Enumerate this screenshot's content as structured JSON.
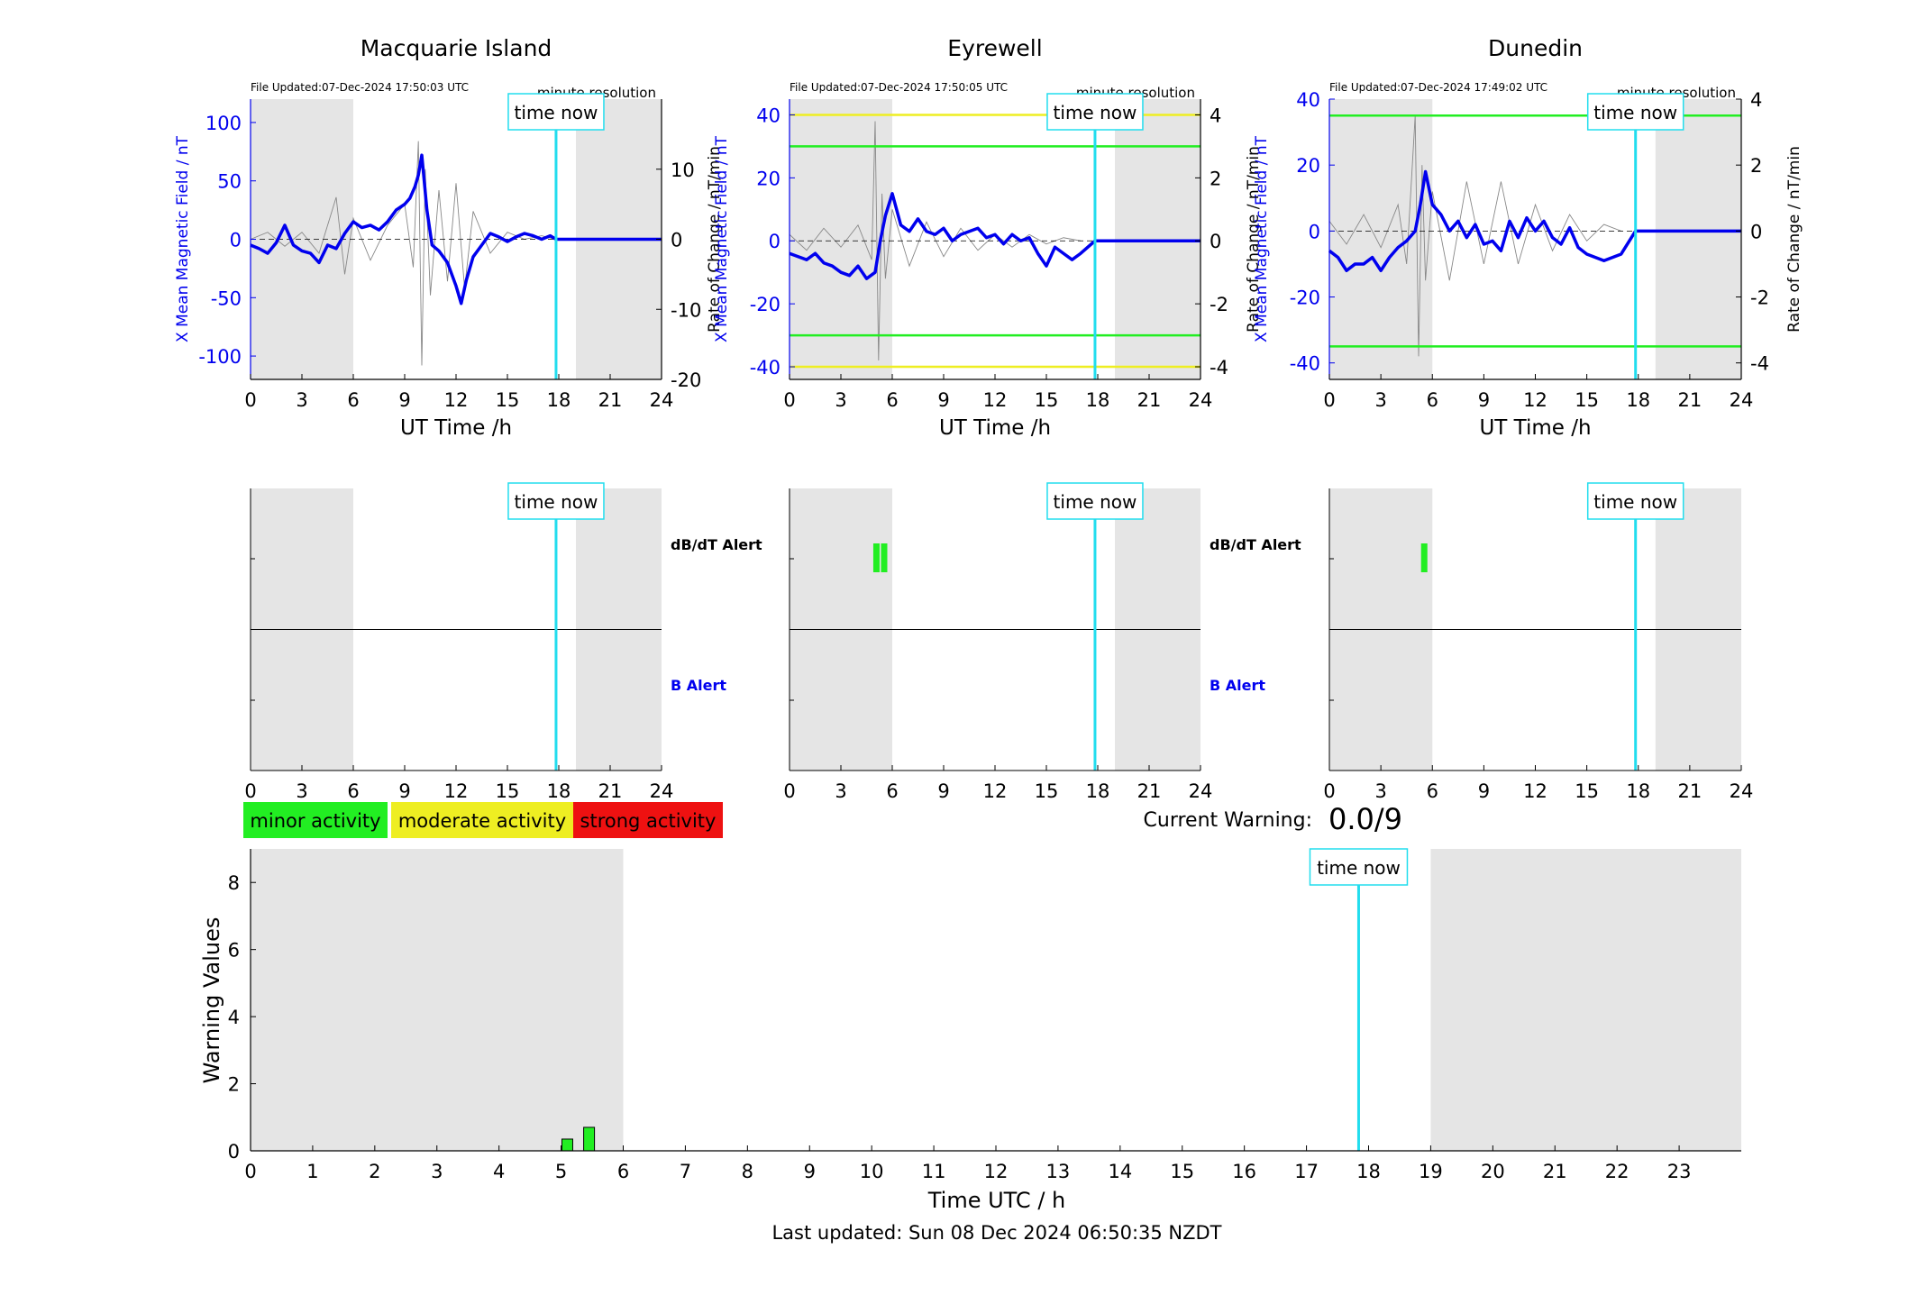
{
  "colors": {
    "night_shade": "#e5e5e5",
    "field_line": "#0000ee",
    "rate_line": "#888888",
    "time_now": "#22ddee",
    "green": "#22ee22",
    "yellow": "#eeee22",
    "red": "#ee1111",
    "axis_blue": "#0000ee"
  },
  "common": {
    "x_ticks": [
      0,
      3,
      6,
      9,
      12,
      15,
      18,
      21,
      24
    ],
    "xlabel": "UT Time /h",
    "ylabel_left": "X Mean Magnetic Field / nT",
    "ylabel_right": "Rate of Change / nT/min",
    "resolution_label": "minute resolution",
    "time_now_label": "time now",
    "time_now_hour": 17.84,
    "shade_ranges": [
      [
        0,
        6
      ],
      [
        19,
        24
      ]
    ],
    "dbdt_alert_label": "dB/dT Alert",
    "b_alert_label": "B Alert"
  },
  "legend": {
    "minor": "minor activity",
    "moderate": "moderate activity",
    "strong": "strong activity"
  },
  "current_warning": {
    "label": "Current Warning:",
    "value": "0.0/9"
  },
  "footer": {
    "last_updated": "Last updated: Sun 08 Dec 2024 06:50:35 NZDT"
  },
  "chart_data": [
    {
      "type": "line",
      "title": "Macquarie Island",
      "file_updated": "File Updated:07-Dec-2024 17:50:03 UTC",
      "xlim": [
        0,
        24
      ],
      "ylim_left": [
        -120,
        120
      ],
      "ylim_right": [
        -20,
        20
      ],
      "yticks_left": [
        -100,
        -50,
        0,
        50,
        100
      ],
      "yticks_right": [
        -20,
        -10,
        0,
        10
      ],
      "threshold_lines": [],
      "field_series": {
        "x": [
          0,
          0.5,
          1,
          1.5,
          2,
          2.5,
          3,
          3.5,
          4,
          4.5,
          5,
          5.5,
          6,
          6.5,
          7,
          7.5,
          8,
          8.5,
          9,
          9.3,
          9.6,
          9.8,
          10,
          10.3,
          10.6,
          11,
          11.5,
          12,
          12.3,
          12.6,
          13,
          13.5,
          14,
          14.5,
          15,
          15.5,
          16,
          16.5,
          17,
          17.5,
          17.84,
          18,
          20,
          22,
          24
        ],
        "y": [
          -5,
          -8,
          -12,
          -3,
          12,
          -5,
          -10,
          -12,
          -20,
          -5,
          -8,
          5,
          15,
          10,
          12,
          8,
          15,
          25,
          30,
          35,
          45,
          55,
          72,
          25,
          -5,
          -10,
          -20,
          -40,
          -55,
          -35,
          -15,
          -5,
          5,
          2,
          -2,
          2,
          5,
          3,
          0,
          3,
          0,
          0,
          0,
          0,
          0
        ]
      },
      "rate_series": {
        "x": [
          0,
          1,
          2,
          3,
          4,
          5,
          5.5,
          6,
          7,
          8,
          9,
          9.5,
          9.8,
          10,
          10.2,
          10.5,
          11,
          11.5,
          12,
          12.5,
          13,
          14,
          15,
          16,
          17,
          17.8
        ],
        "y": [
          0,
          1,
          -1,
          1,
          -2,
          6,
          -5,
          3,
          -3,
          2,
          5,
          -4,
          14,
          -18,
          10,
          -8,
          7,
          -6,
          8,
          -7,
          4,
          -2,
          1,
          0,
          0.5,
          0
        ]
      },
      "alerts": {
        "dbdt": [],
        "b": []
      }
    },
    {
      "type": "line",
      "title": "Eyrewell",
      "file_updated": "File Updated:07-Dec-2024 17:50:05 UTC",
      "xlim": [
        0,
        24
      ],
      "ylim_left": [
        -44,
        45
      ],
      "ylim_right": [
        -4.4,
        4.5
      ],
      "yticks_left": [
        -40,
        -20,
        0,
        20,
        40
      ],
      "yticks_right": [
        -4,
        -2,
        0,
        2,
        4
      ],
      "threshold_lines": [
        {
          "value": 40,
          "color": "yellow"
        },
        {
          "value": 30,
          "color": "green"
        },
        {
          "value": -30,
          "color": "green"
        },
        {
          "value": -40,
          "color": "yellow"
        }
      ],
      "field_series": {
        "x": [
          0,
          0.5,
          1,
          1.5,
          2,
          2.5,
          3,
          3.5,
          4,
          4.5,
          5,
          5.3,
          5.6,
          6,
          6.5,
          7,
          7.5,
          8,
          8.5,
          9,
          9.5,
          10,
          10.5,
          11,
          11.5,
          12,
          12.5,
          13,
          13.5,
          14,
          14.5,
          15,
          15.5,
          16,
          16.5,
          17,
          17.84,
          18,
          20,
          22,
          24
        ],
        "y": [
          -4,
          -5,
          -6,
          -4,
          -7,
          -8,
          -10,
          -11,
          -8,
          -12,
          -10,
          0,
          8,
          15,
          5,
          3,
          7,
          3,
          2,
          4,
          0,
          2,
          3,
          4,
          1,
          2,
          -1,
          2,
          0,
          1,
          -4,
          -8,
          -2,
          -4,
          -6,
          -4,
          0,
          0,
          0,
          0,
          0
        ]
      },
      "rate_series": {
        "x": [
          0,
          1,
          2,
          3,
          4,
          4.8,
          5,
          5.2,
          5.4,
          5.6,
          6,
          7,
          8,
          9,
          10,
          11,
          12,
          13,
          14,
          15,
          16,
          17
        ],
        "y": [
          0.2,
          -0.3,
          0.4,
          -0.2,
          0.5,
          -0.6,
          3.8,
          -3.8,
          1.5,
          -1.2,
          1,
          -0.8,
          0.6,
          -0.5,
          0.4,
          -0.3,
          0.2,
          -0.2,
          0.2,
          -0.1,
          0.1,
          0
        ]
      },
      "alerts": {
        "dbdt": [
          5.05,
          5.5
        ],
        "b": []
      }
    },
    {
      "type": "line",
      "title": "Dunedin",
      "file_updated": "File Updated:07-Dec-2024 17:49:02 UTC",
      "xlim": [
        0,
        24
      ],
      "ylim_left": [
        -45,
        40
      ],
      "ylim_right": [
        -4.5,
        4
      ],
      "yticks_left": [
        -40,
        -20,
        0,
        20,
        40
      ],
      "yticks_right": [
        -4,
        -2,
        0,
        2,
        4
      ],
      "threshold_lines": [
        {
          "value": 35,
          "color": "green"
        },
        {
          "value": -35,
          "color": "green"
        }
      ],
      "field_series": {
        "x": [
          0,
          0.5,
          1,
          1.5,
          2,
          2.5,
          3,
          3.5,
          4,
          4.5,
          5,
          5.3,
          5.6,
          6,
          6.5,
          7,
          7.5,
          8,
          8.5,
          9,
          9.5,
          10,
          10.5,
          11,
          11.5,
          12,
          12.5,
          13,
          13.5,
          14,
          14.5,
          15,
          15.5,
          16,
          16.5,
          17,
          17.84,
          18,
          20,
          22,
          24
        ],
        "y": [
          -6,
          -8,
          -12,
          -10,
          -10,
          -8,
          -12,
          -8,
          -5,
          -3,
          0,
          8,
          18,
          8,
          5,
          0,
          3,
          -2,
          2,
          -4,
          -3,
          -6,
          3,
          -2,
          4,
          0,
          3,
          -2,
          -4,
          1,
          -5,
          -7,
          -8,
          -9,
          -8,
          -7,
          0,
          0,
          0,
          0,
          0
        ]
      },
      "rate_series": {
        "x": [
          0,
          1,
          2,
          3,
          4,
          4.5,
          5,
          5.2,
          5.4,
          5.6,
          6,
          7,
          8,
          9,
          10,
          11,
          12,
          13,
          14,
          15,
          16,
          17
        ],
        "y": [
          0.3,
          -0.4,
          0.5,
          -0.5,
          0.8,
          -1,
          3.5,
          -3.8,
          2,
          -1.5,
          1.2,
          -1.5,
          1.5,
          -1,
          1.5,
          -1,
          0.8,
          -0.6,
          0.5,
          -0.3,
          0.2,
          0
        ]
      },
      "alerts": {
        "dbdt": [
          5.5
        ],
        "b": []
      }
    },
    {
      "type": "bar",
      "xlabel": "Time UTC / h",
      "ylabel": "Warning Values",
      "xlim": [
        0,
        24
      ],
      "ylim": [
        0,
        9
      ],
      "x_ticks": [
        0,
        1,
        2,
        3,
        4,
        5,
        6,
        7,
        8,
        9,
        10,
        11,
        12,
        13,
        14,
        15,
        16,
        17,
        18,
        19,
        20,
        21,
        22,
        23
      ],
      "y_ticks": [
        0,
        2,
        4,
        6,
        8
      ],
      "shade_ranges": [
        [
          0,
          6
        ],
        [
          19,
          24
        ]
      ],
      "bars": [
        {
          "x": 5.1,
          "value": 0.35
        },
        {
          "x": 5.45,
          "value": 0.7
        }
      ]
    }
  ]
}
